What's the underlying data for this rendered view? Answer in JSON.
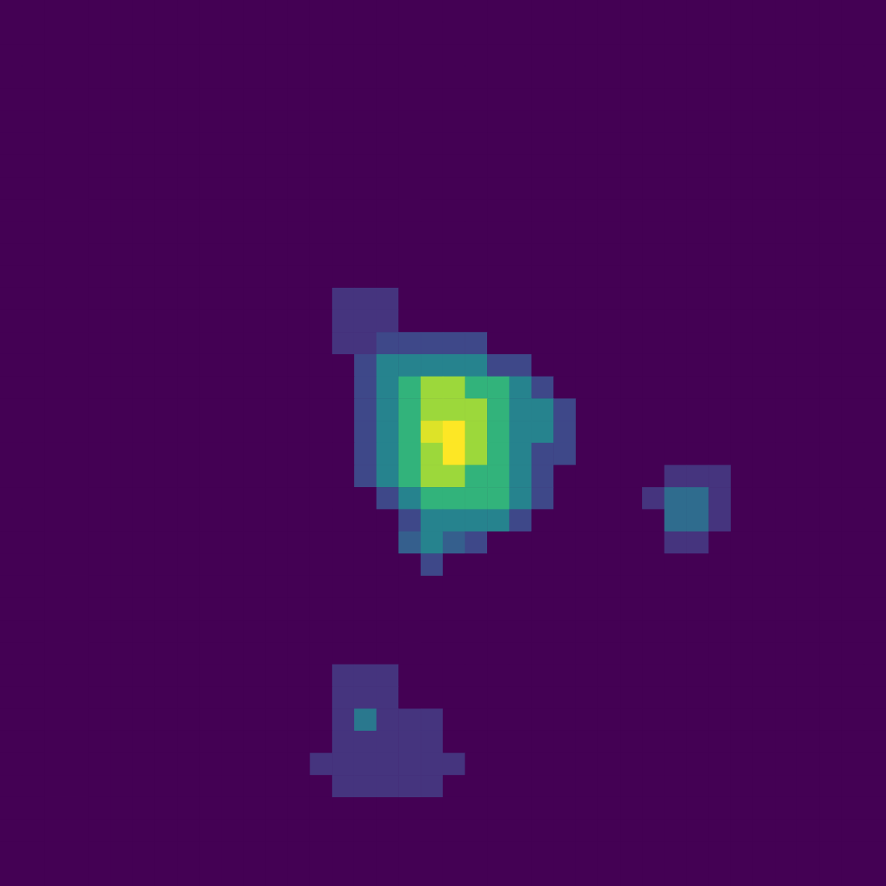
{
  "chart_data": {
    "type": "heatmap",
    "color": "viridis",
    "tick_labels": false,
    "zlim": [
      0,
      100
    ],
    "z": [
      [
        0,
        0,
        0,
        0,
        0,
        0,
        0,
        0,
        0,
        0,
        0,
        0,
        0,
        0,
        0,
        0,
        0,
        0,
        0,
        0,
        0,
        0,
        0,
        0,
        0,
        0,
        0,
        0,
        0,
        0,
        0,
        0,
        0,
        0,
        0,
        0,
        0,
        0,
        0,
        0
      ],
      [
        0,
        0,
        0,
        0,
        0,
        0,
        0,
        0,
        0,
        0,
        0,
        0,
        0,
        0,
        0,
        0,
        0,
        0,
        0,
        0,
        0,
        0,
        0,
        0,
        0,
        0,
        0,
        0,
        0,
        0,
        0,
        0,
        0,
        0,
        0,
        0,
        0,
        0,
        0,
        0
      ],
      [
        0,
        0,
        0,
        0,
        0,
        0,
        0,
        0,
        0,
        0,
        0,
        0,
        0,
        0,
        0,
        0,
        0,
        0,
        0,
        0,
        0,
        0,
        0,
        0,
        0,
        0,
        0,
        0,
        0,
        0,
        0,
        0,
        0,
        0,
        0,
        0,
        0,
        0,
        0,
        0
      ],
      [
        0,
        0,
        0,
        0,
        0,
        0,
        0,
        0,
        0,
        0,
        0,
        0,
        0,
        0,
        0,
        0,
        0,
        0,
        0,
        0,
        0,
        0,
        0,
        0,
        0,
        0,
        0,
        0,
        0,
        0,
        0,
        0,
        0,
        0,
        0,
        0,
        0,
        0,
        0,
        0
      ],
      [
        0,
        0,
        0,
        0,
        0,
        0,
        0,
        0,
        0,
        0,
        0,
        0,
        0,
        0,
        0,
        0,
        0,
        0,
        0,
        0,
        0,
        0,
        0,
        0,
        0,
        0,
        0,
        0,
        0,
        0,
        0,
        0,
        0,
        0,
        0,
        0,
        0,
        0,
        0,
        0
      ],
      [
        0,
        0,
        0,
        0,
        0,
        0,
        0,
        0,
        0,
        0,
        0,
        0,
        0,
        0,
        0,
        0,
        0,
        0,
        0,
        0,
        0,
        0,
        0,
        0,
        0,
        0,
        0,
        0,
        0,
        0,
        0,
        0,
        0,
        0,
        0,
        0,
        0,
        0,
        0,
        0
      ],
      [
        0,
        0,
        0,
        0,
        0,
        0,
        0,
        0,
        0,
        0,
        0,
        0,
        0,
        0,
        0,
        0,
        0,
        0,
        0,
        0,
        0,
        0,
        0,
        0,
        0,
        0,
        0,
        0,
        0,
        0,
        0,
        0,
        0,
        0,
        0,
        0,
        0,
        0,
        0,
        0
      ],
      [
        0,
        0,
        0,
        0,
        0,
        0,
        0,
        0,
        0,
        0,
        0,
        0,
        0,
        0,
        0,
        0,
        0,
        0,
        0,
        0,
        0,
        0,
        0,
        0,
        0,
        0,
        0,
        0,
        0,
        0,
        0,
        0,
        0,
        0,
        0,
        0,
        0,
        0,
        0,
        0
      ],
      [
        0,
        0,
        0,
        0,
        0,
        0,
        0,
        0,
        0,
        0,
        0,
        0,
        0,
        0,
        0,
        0,
        0,
        0,
        0,
        0,
        0,
        0,
        0,
        0,
        0,
        0,
        0,
        0,
        0,
        0,
        0,
        0,
        0,
        0,
        0,
        0,
        0,
        0,
        0,
        0
      ],
      [
        0,
        0,
        0,
        0,
        0,
        0,
        0,
        0,
        0,
        0,
        0,
        0,
        0,
        0,
        0,
        0,
        0,
        0,
        0,
        0,
        0,
        0,
        0,
        0,
        0,
        0,
        0,
        0,
        0,
        0,
        0,
        0,
        0,
        0,
        0,
        0,
        0,
        0,
        0,
        0
      ],
      [
        0,
        0,
        0,
        0,
        0,
        0,
        0,
        0,
        0,
        0,
        0,
        0,
        0,
        0,
        0,
        0,
        0,
        0,
        0,
        0,
        0,
        0,
        0,
        0,
        0,
        0,
        0,
        0,
        0,
        0,
        0,
        0,
        0,
        0,
        0,
        0,
        0,
        0,
        0,
        0
      ],
      [
        0,
        0,
        0,
        0,
        0,
        0,
        0,
        0,
        0,
        0,
        0,
        0,
        0,
        0,
        0,
        0,
        0,
        0,
        0,
        0,
        0,
        0,
        0,
        0,
        0,
        0,
        0,
        0,
        0,
        0,
        0,
        0,
        0,
        0,
        0,
        0,
        0,
        0,
        0,
        0
      ],
      [
        0,
        0,
        0,
        0,
        0,
        0,
        0,
        0,
        0,
        0,
        0,
        0,
        0,
        0,
        0,
        0,
        0,
        0,
        0,
        0,
        0,
        0,
        0,
        0,
        0,
        0,
        0,
        0,
        0,
        0,
        0,
        0,
        0,
        0,
        0,
        0,
        0,
        0,
        0,
        0
      ],
      [
        0,
        0,
        0,
        0,
        0,
        0,
        0,
        0,
        0,
        0,
        0,
        0,
        0,
        0,
        0,
        15,
        15,
        15,
        0,
        0,
        0,
        0,
        0,
        0,
        0,
        0,
        0,
        0,
        0,
        0,
        0,
        0,
        0,
        0,
        0,
        0,
        0,
        0,
        0,
        0
      ],
      [
        0,
        0,
        0,
        0,
        0,
        0,
        0,
        0,
        0,
        0,
        0,
        0,
        0,
        0,
        0,
        15,
        15,
        15,
        0,
        0,
        0,
        0,
        0,
        0,
        0,
        0,
        0,
        0,
        0,
        0,
        0,
        0,
        0,
        0,
        0,
        0,
        0,
        0,
        0,
        0
      ],
      [
        0,
        0,
        0,
        0,
        0,
        0,
        0,
        0,
        0,
        0,
        0,
        0,
        0,
        0,
        0,
        15,
        15,
        22,
        22,
        22,
        22,
        22,
        0,
        0,
        0,
        0,
        0,
        0,
        0,
        0,
        0,
        0,
        0,
        0,
        0,
        0,
        0,
        0,
        0,
        0
      ],
      [
        0,
        0,
        0,
        0,
        0,
        0,
        0,
        0,
        0,
        0,
        0,
        0,
        0,
        0,
        0,
        0,
        22,
        45,
        45,
        45,
        45,
        45,
        22,
        22,
        0,
        0,
        0,
        0,
        0,
        0,
        0,
        0,
        0,
        0,
        0,
        0,
        0,
        0,
        0,
        0
      ],
      [
        0,
        0,
        0,
        0,
        0,
        0,
        0,
        0,
        0,
        0,
        0,
        0,
        0,
        0,
        0,
        0,
        22,
        45,
        65,
        85,
        85,
        65,
        65,
        45,
        22,
        0,
        0,
        0,
        0,
        0,
        0,
        0,
        0,
        0,
        0,
        0,
        0,
        0,
        0,
        0
      ],
      [
        0,
        0,
        0,
        0,
        0,
        0,
        0,
        0,
        0,
        0,
        0,
        0,
        0,
        0,
        0,
        0,
        22,
        45,
        65,
        85,
        85,
        85,
        65,
        45,
        45,
        22,
        0,
        0,
        0,
        0,
        0,
        0,
        0,
        0,
        0,
        0,
        0,
        0,
        0,
        0
      ],
      [
        0,
        0,
        0,
        0,
        0,
        0,
        0,
        0,
        0,
        0,
        0,
        0,
        0,
        0,
        0,
        0,
        22,
        45,
        65,
        95,
        100,
        85,
        65,
        45,
        45,
        22,
        0,
        0,
        0,
        0,
        0,
        0,
        0,
        0,
        0,
        0,
        0,
        0,
        0,
        0
      ],
      [
        0,
        0,
        0,
        0,
        0,
        0,
        0,
        0,
        0,
        0,
        0,
        0,
        0,
        0,
        0,
        0,
        22,
        45,
        65,
        85,
        100,
        85,
        65,
        45,
        22,
        22,
        0,
        0,
        0,
        0,
        0,
        0,
        0,
        0,
        0,
        0,
        0,
        0,
        0,
        0
      ],
      [
        0,
        0,
        0,
        0,
        0,
        0,
        0,
        0,
        0,
        0,
        0,
        0,
        0,
        0,
        0,
        0,
        22,
        45,
        65,
        85,
        85,
        65,
        65,
        45,
        22,
        0,
        0,
        0,
        0,
        0,
        15,
        15,
        15,
        0,
        0,
        0,
        0,
        0,
        0,
        0
      ],
      [
        0,
        0,
        0,
        0,
        0,
        0,
        0,
        0,
        0,
        0,
        0,
        0,
        0,
        0,
        0,
        0,
        0,
        22,
        45,
        65,
        65,
        65,
        65,
        45,
        22,
        0,
        0,
        0,
        0,
        15,
        35,
        35,
        15,
        0,
        0,
        0,
        0,
        0,
        0,
        0
      ],
      [
        0,
        0,
        0,
        0,
        0,
        0,
        0,
        0,
        0,
        0,
        0,
        0,
        0,
        0,
        0,
        0,
        0,
        0,
        22,
        45,
        45,
        45,
        45,
        22,
        0,
        0,
        0,
        0,
        0,
        0,
        35,
        35,
        15,
        0,
        0,
        0,
        0,
        0,
        0,
        0
      ],
      [
        0,
        0,
        0,
        0,
        0,
        0,
        0,
        0,
        0,
        0,
        0,
        0,
        0,
        0,
        0,
        0,
        0,
        0,
        30,
        45,
        30,
        22,
        0,
        0,
        0,
        0,
        0,
        0,
        0,
        0,
        15,
        15,
        0,
        0,
        0,
        0,
        0,
        0,
        0,
        0
      ],
      [
        0,
        0,
        0,
        0,
        0,
        0,
        0,
        0,
        0,
        0,
        0,
        0,
        0,
        0,
        0,
        0,
        0,
        0,
        0,
        22,
        0,
        0,
        0,
        0,
        0,
        0,
        0,
        0,
        0,
        0,
        0,
        0,
        0,
        0,
        0,
        0,
        0,
        0,
        0,
        0
      ],
      [
        0,
        0,
        0,
        0,
        0,
        0,
        0,
        0,
        0,
        0,
        0,
        0,
        0,
        0,
        0,
        0,
        0,
        0,
        0,
        0,
        0,
        0,
        0,
        0,
        0,
        0,
        0,
        0,
        0,
        0,
        0,
        0,
        0,
        0,
        0,
        0,
        0,
        0,
        0,
        0
      ],
      [
        0,
        0,
        0,
        0,
        0,
        0,
        0,
        0,
        0,
        0,
        0,
        0,
        0,
        0,
        0,
        0,
        0,
        0,
        0,
        0,
        0,
        0,
        0,
        0,
        0,
        0,
        0,
        0,
        0,
        0,
        0,
        0,
        0,
        0,
        0,
        0,
        0,
        0,
        0,
        0
      ],
      [
        0,
        0,
        0,
        0,
        0,
        0,
        0,
        0,
        0,
        0,
        0,
        0,
        0,
        0,
        0,
        0,
        0,
        0,
        0,
        0,
        0,
        0,
        0,
        0,
        0,
        0,
        0,
        0,
        0,
        0,
        0,
        0,
        0,
        0,
        0,
        0,
        0,
        0,
        0,
        0
      ],
      [
        0,
        0,
        0,
        0,
        0,
        0,
        0,
        0,
        0,
        0,
        0,
        0,
        0,
        0,
        0,
        0,
        0,
        0,
        0,
        0,
        0,
        0,
        0,
        0,
        0,
        0,
        0,
        0,
        0,
        0,
        0,
        0,
        0,
        0,
        0,
        0,
        0,
        0,
        0,
        0
      ],
      [
        0,
        0,
        0,
        0,
        0,
        0,
        0,
        0,
        0,
        0,
        0,
        0,
        0,
        0,
        0,
        15,
        15,
        15,
        0,
        0,
        0,
        0,
        0,
        0,
        0,
        0,
        0,
        0,
        0,
        0,
        0,
        0,
        0,
        0,
        0,
        0,
        0,
        0,
        0,
        0
      ],
      [
        0,
        0,
        0,
        0,
        0,
        0,
        0,
        0,
        0,
        0,
        0,
        0,
        0,
        0,
        0,
        15,
        15,
        15,
        0,
        0,
        0,
        0,
        0,
        0,
        0,
        0,
        0,
        0,
        0,
        0,
        0,
        0,
        0,
        0,
        0,
        0,
        0,
        0,
        0,
        0
      ],
      [
        0,
        0,
        0,
        0,
        0,
        0,
        0,
        0,
        0,
        0,
        0,
        0,
        0,
        0,
        0,
        15,
        40,
        15,
        15,
        15,
        0,
        0,
        0,
        0,
        0,
        0,
        0,
        0,
        0,
        0,
        0,
        0,
        0,
        0,
        0,
        0,
        0,
        0,
        0,
        0
      ],
      [
        0,
        0,
        0,
        0,
        0,
        0,
        0,
        0,
        0,
        0,
        0,
        0,
        0,
        0,
        0,
        15,
        15,
        15,
        15,
        15,
        0,
        0,
        0,
        0,
        0,
        0,
        0,
        0,
        0,
        0,
        0,
        0,
        0,
        0,
        0,
        0,
        0,
        0,
        0,
        0
      ],
      [
        0,
        0,
        0,
        0,
        0,
        0,
        0,
        0,
        0,
        0,
        0,
        0,
        0,
        0,
        15,
        15,
        15,
        15,
        15,
        15,
        15,
        0,
        0,
        0,
        0,
        0,
        0,
        0,
        0,
        0,
        0,
        0,
        0,
        0,
        0,
        0,
        0,
        0,
        0,
        0
      ],
      [
        0,
        0,
        0,
        0,
        0,
        0,
        0,
        0,
        0,
        0,
        0,
        0,
        0,
        0,
        0,
        15,
        15,
        15,
        15,
        15,
        0,
        0,
        0,
        0,
        0,
        0,
        0,
        0,
        0,
        0,
        0,
        0,
        0,
        0,
        0,
        0,
        0,
        0,
        0,
        0
      ],
      [
        0,
        0,
        0,
        0,
        0,
        0,
        0,
        0,
        0,
        0,
        0,
        0,
        0,
        0,
        0,
        0,
        0,
        0,
        0,
        0,
        0,
        0,
        0,
        0,
        0,
        0,
        0,
        0,
        0,
        0,
        0,
        0,
        0,
        0,
        0,
        0,
        0,
        0,
        0,
        0
      ],
      [
        0,
        0,
        0,
        0,
        0,
        0,
        0,
        0,
        0,
        0,
        0,
        0,
        0,
        0,
        0,
        0,
        0,
        0,
        0,
        0,
        0,
        0,
        0,
        0,
        0,
        0,
        0,
        0,
        0,
        0,
        0,
        0,
        0,
        0,
        0,
        0,
        0,
        0,
        0,
        0
      ],
      [
        0,
        0,
        0,
        0,
        0,
        0,
        0,
        0,
        0,
        0,
        0,
        0,
        0,
        0,
        0,
        0,
        0,
        0,
        0,
        0,
        0,
        0,
        0,
        0,
        0,
        0,
        0,
        0,
        0,
        0,
        0,
        0,
        0,
        0,
        0,
        0,
        0,
        0,
        0,
        0
      ],
      [
        0,
        0,
        0,
        0,
        0,
        0,
        0,
        0,
        0,
        0,
        0,
        0,
        0,
        0,
        0,
        0,
        0,
        0,
        0,
        0,
        0,
        0,
        0,
        0,
        0,
        0,
        0,
        0,
        0,
        0,
        0,
        0,
        0,
        0,
        0,
        0,
        0,
        0,
        0,
        0
      ]
    ]
  }
}
